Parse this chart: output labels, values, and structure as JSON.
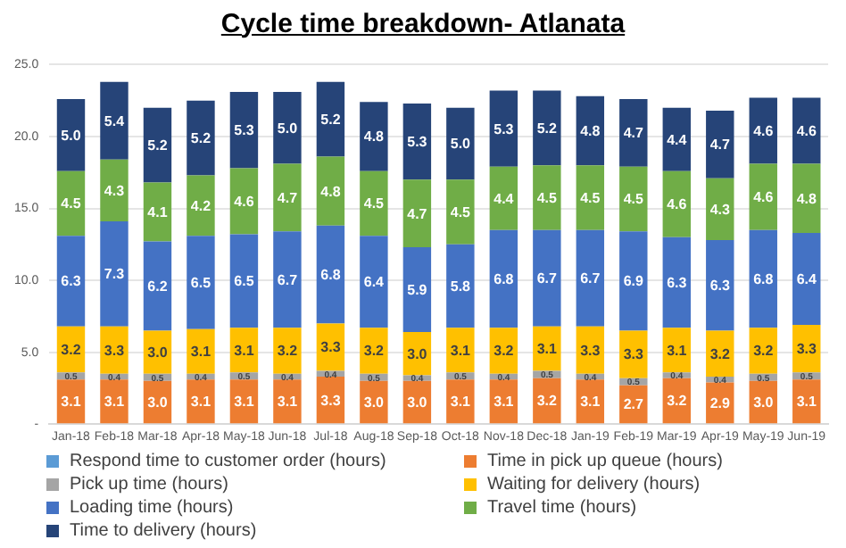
{
  "chart_data": {
    "type": "bar",
    "title": "Cycle time breakdown- Atlanata",
    "stacked": true,
    "grid": "y",
    "legend": "bottom",
    "categories": [
      "Jan-18",
      "Feb-18",
      "Mar-18",
      "Apr-18",
      "May-18",
      "Jun-18",
      "Jul-18",
      "Aug-18",
      "Sep-18",
      "Oct-18",
      "Nov-18",
      "Dec-18",
      "Jan-19",
      "Feb-19",
      "Mar-19",
      "Apr-19",
      "May-19",
      "Jun-19"
    ],
    "ylim": [
      0,
      25
    ],
    "yticks": [
      {
        "value": 0,
        "label": "-"
      },
      {
        "value": 5,
        "label": "5.0"
      },
      {
        "value": 10,
        "label": "10.0"
      },
      {
        "value": 15,
        "label": "15.0"
      },
      {
        "value": 20,
        "label": "20.0"
      },
      {
        "value": 25,
        "label": "25.0"
      }
    ],
    "series": [
      {
        "name": "Respond time to customer order (hours)",
        "color": "#5b9bd5",
        "values": [
          0,
          0,
          0,
          0,
          0,
          0,
          0,
          0,
          0,
          0,
          0,
          0,
          0,
          0,
          0,
          0,
          0,
          0
        ],
        "value_labels": [
          null,
          null,
          null,
          null,
          null,
          null,
          null,
          null,
          null,
          null,
          null,
          null,
          null,
          null,
          null,
          null,
          null,
          null
        ]
      },
      {
        "name": "Time in pick up queue (hours)",
        "color": "#ed7d31",
        "values": [
          3.1,
          3.1,
          3.0,
          3.1,
          3.1,
          3.1,
          3.3,
          3.0,
          3.0,
          3.1,
          3.1,
          3.2,
          3.1,
          2.7,
          3.2,
          2.9,
          3.0,
          3.1
        ],
        "value_labels": [
          "3.1",
          "3.1",
          "3.0",
          "3.1",
          "3.1",
          "3.1",
          "3.3",
          "3.0",
          "3.0",
          "3.1",
          "3.1",
          "3.2",
          "3.1",
          "2.7",
          "3.2",
          "2.9",
          "3.0",
          "3.1"
        ]
      },
      {
        "name": "Pick up time (hours)",
        "color": "#a5a5a5",
        "values": [
          0.5,
          0.4,
          0.5,
          0.4,
          0.5,
          0.4,
          0.4,
          0.5,
          0.4,
          0.5,
          0.4,
          0.5,
          0.4,
          0.5,
          0.4,
          0.4,
          0.5,
          0.5
        ],
        "value_labels": [
          "0.5",
          "0.4",
          "0.5",
          "0.4",
          "0.5",
          "0.4",
          "0.4",
          "0.5",
          "0.4",
          "0.5",
          "0.4",
          "0.5",
          "0.4",
          "0.5",
          "0.4",
          "0.4",
          "0.5",
          "0.5"
        ]
      },
      {
        "name": "Waiting for delivery (hours)",
        "color": "#ffc000",
        "values": [
          3.2,
          3.3,
          3.0,
          3.1,
          3.1,
          3.2,
          3.3,
          3.2,
          3.0,
          3.1,
          3.2,
          3.1,
          3.3,
          3.3,
          3.1,
          3.2,
          3.2,
          3.3
        ],
        "value_labels": [
          "3.2",
          "3.3",
          "3.0",
          "3.1",
          "3.1",
          "3.2",
          "3.3",
          "3.2",
          "3.0",
          "3.1",
          "3.2",
          "3.1",
          "3.3",
          "3.3",
          "3.1",
          "3.2",
          "3.2",
          "3.3"
        ]
      },
      {
        "name": "Loading time (hours)",
        "color": "#4472c4",
        "values": [
          6.3,
          7.3,
          6.2,
          6.5,
          6.5,
          6.7,
          6.8,
          6.4,
          5.9,
          5.8,
          6.8,
          6.7,
          6.7,
          6.9,
          6.3,
          6.3,
          6.8,
          6.4
        ],
        "value_labels": [
          "6.3",
          "7.3",
          "6.2",
          "6.5",
          "6.5",
          "6.7",
          "6.8",
          "6.4",
          "5.9",
          "5.8",
          "6.8",
          "6.7",
          "6.7",
          "6.9",
          "6.3",
          "6.3",
          "6.8",
          "6.4"
        ]
      },
      {
        "name": "Travel time (hours)",
        "color": "#70ad47",
        "values": [
          4.5,
          4.3,
          4.1,
          4.2,
          4.6,
          4.7,
          4.8,
          4.5,
          4.7,
          4.5,
          4.4,
          4.5,
          4.5,
          4.5,
          4.6,
          4.3,
          4.6,
          4.8
        ],
        "value_labels": [
          "4.5",
          "4.3",
          "4.1",
          "4.2",
          "4.6",
          "4.7",
          "4.8",
          "4.5",
          "4.7",
          "4.5",
          "4.4",
          "4.5",
          "4.5",
          "4.5",
          "4.6",
          "4.3",
          "4.6",
          "4.8"
        ]
      },
      {
        "name": "Time to delivery (hours)",
        "color": "#264478",
        "values": [
          5.0,
          5.4,
          5.2,
          5.2,
          5.3,
          5.0,
          5.2,
          4.8,
          5.3,
          5.0,
          5.3,
          5.2,
          4.8,
          4.7,
          4.4,
          4.7,
          4.6,
          4.6
        ],
        "value_labels": [
          "5.0",
          "5.4",
          "5.2",
          "5.2",
          "5.3",
          "5.0",
          "5.2",
          "4.8",
          "5.3",
          "5.0",
          "5.3",
          "5.2",
          "4.8",
          "4.7",
          "4.4",
          "4.7",
          "4.6",
          "4.6"
        ]
      }
    ]
  }
}
